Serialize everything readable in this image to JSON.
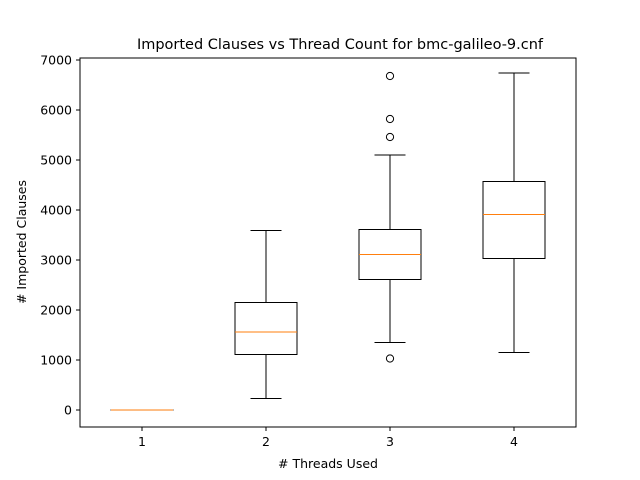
{
  "chart_data": {
    "type": "box",
    "title": "Imported Clauses vs Thread Count for bmc-galileo-9.cnf",
    "xlabel": "# Threads Used",
    "ylabel": "# Imported Clauses",
    "categories": [
      "1",
      "2",
      "3",
      "4"
    ],
    "ylim": [
      -340,
      7040
    ],
    "yticks": [
      0,
      1000,
      2000,
      3000,
      4000,
      5000,
      6000,
      7000
    ],
    "yticklabels": [
      "0",
      "1000",
      "2000",
      "3000",
      "4000",
      "5000",
      "6000",
      "7000"
    ],
    "grid": false,
    "boxes": [
      {
        "label": "1",
        "whisker_low": 0,
        "q1": 0,
        "median": 0,
        "q3": 0,
        "whisker_high": 0,
        "outliers": []
      },
      {
        "label": "2",
        "whisker_low": 230,
        "q1": 1110,
        "median": 1560,
        "q3": 2150,
        "whisker_high": 3590,
        "outliers": []
      },
      {
        "label": "3",
        "whisker_low": 1350,
        "q1": 2610,
        "median": 3110,
        "q3": 3610,
        "whisker_high": 5100,
        "outliers": [
          1030,
          5460,
          5820,
          6680
        ]
      },
      {
        "label": "4",
        "whisker_low": 1150,
        "q1": 3030,
        "median": 3910,
        "q3": 4570,
        "whisker_high": 6740,
        "outliers": []
      }
    ],
    "colors": {
      "box": "#000000",
      "median": "#ff7f0e",
      "outlier": "#000000"
    }
  }
}
